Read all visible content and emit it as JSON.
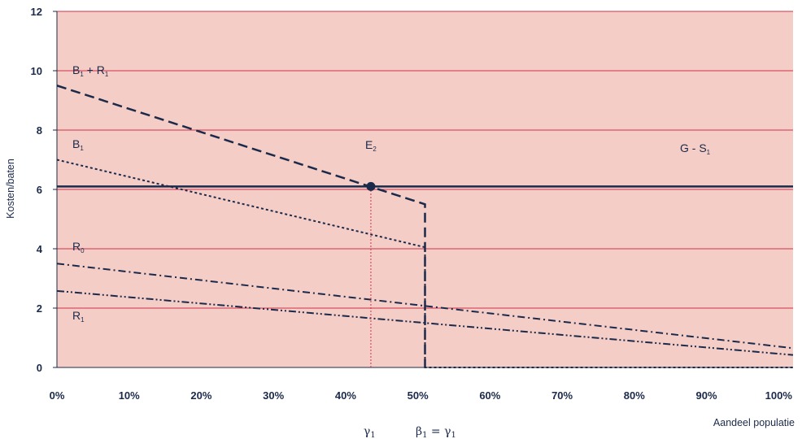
{
  "chart_data": {
    "type": "line",
    "title": "",
    "xlabel": "Aandeel populatie",
    "ylabel": "Kosten/baten",
    "xlim": [
      0,
      1.02
    ],
    "ylim": [
      0,
      12
    ],
    "x_ticks": [
      "0%",
      "10%",
      "20%",
      "30%",
      "40%",
      "50%",
      "60%",
      "70%",
      "80%",
      "90%",
      "100%"
    ],
    "x_tick_values": [
      0,
      0.1,
      0.2,
      0.3,
      0.4,
      0.5,
      0.6,
      0.7,
      0.8,
      0.9,
      1.0
    ],
    "y_ticks": [
      "0",
      "2",
      "4",
      "6",
      "8",
      "10",
      "12"
    ],
    "y_tick_values": [
      0,
      2,
      4,
      6,
      8,
      10,
      12
    ],
    "grid": true,
    "colors": {
      "plot_background": "#f4cdc7",
      "gridline": "#d0334b",
      "series": "#1b2a4a",
      "marker_line": "#d0334b"
    },
    "series": [
      {
        "name": "B₁ + R₁",
        "style": "dashed",
        "x": [
          0,
          0.51,
          0.51
        ],
        "y": [
          9.5,
          5.5,
          0
        ]
      },
      {
        "name": "B₁",
        "style": "dotted",
        "x": [
          0,
          0.51,
          0.51,
          1.02
        ],
        "y": [
          7.0,
          4.05,
          0,
          0
        ]
      },
      {
        "name": "G - S₁",
        "style": "solid",
        "x": [
          0,
          1.02
        ],
        "y": [
          6.1,
          6.1
        ]
      },
      {
        "name": "R₀",
        "style": "dashdot",
        "x": [
          0,
          1.02
        ],
        "y": [
          3.5,
          0.65
        ]
      },
      {
        "name": "R₁",
        "style": "dashdotdot",
        "x": [
          0,
          0.51,
          1.02
        ],
        "y": [
          2.58,
          1.5,
          0.42
        ]
      }
    ],
    "labels": {
      "b1r1": {
        "base": "B",
        "sub": "1",
        "rest": " + R",
        "sub2": "1"
      },
      "b1": {
        "base": "B",
        "sub": "1"
      },
      "e2": {
        "base": "E",
        "sub": "2"
      },
      "gs1": {
        "base": "G - S",
        "sub": "1"
      },
      "r0": {
        "base": "R",
        "sub": "0"
      },
      "r1": {
        "base": "R",
        "sub": "1"
      }
    },
    "equilibrium": {
      "label": "E₂",
      "x": 0.435,
      "y": 6.1
    },
    "reference_line": {
      "x": 0.435,
      "y_from": 0,
      "y_to": 6.1
    },
    "annotations": {
      "gamma": {
        "glyph": "γ",
        "sub": "1"
      },
      "beta_gamma": {
        "glyph": "β",
        "sub": "1",
        "eq": " = ",
        "glyph2": "γ",
        "sub2": "1"
      }
    }
  }
}
